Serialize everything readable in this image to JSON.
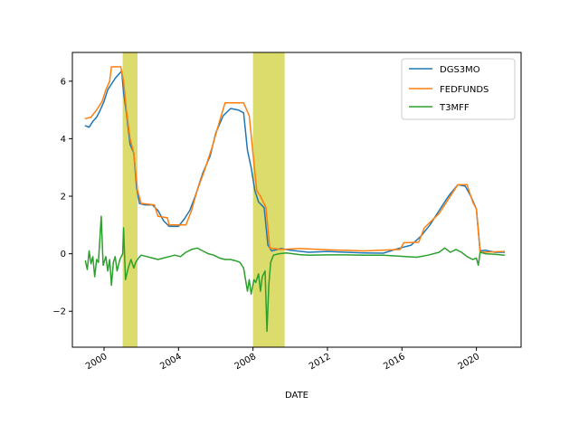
{
  "chart_data": {
    "type": "line",
    "title": "",
    "xlabel": "DATE",
    "ylabel": "",
    "xlim": [
      1998.3,
      2022.4
    ],
    "ylim": [
      -3.25,
      7.0
    ],
    "x_ticks": [
      {
        "value": 2000,
        "label": "2000"
      },
      {
        "value": 2004,
        "label": "2004"
      },
      {
        "value": 2008,
        "label": "2008"
      },
      {
        "value": 2012,
        "label": "2012"
      },
      {
        "value": 2016,
        "label": "2016"
      },
      {
        "value": 2020,
        "label": "2020"
      }
    ],
    "y_ticks": [
      {
        "value": -2,
        "label": "−2"
      },
      {
        "value": 0,
        "label": "0"
      },
      {
        "value": 2,
        "label": "2"
      },
      {
        "value": 4,
        "label": "4"
      },
      {
        "value": 6,
        "label": "6"
      }
    ],
    "grid": false,
    "legend_position": "top-right",
    "shaded_regions": [
      {
        "x0": 2001.0,
        "x1": 2001.8,
        "color": "#d6d654"
      },
      {
        "x0": 2008.0,
        "x1": 2009.7,
        "color": "#d6d654"
      }
    ],
    "series": [
      {
        "name": "DGS3MO",
        "color": "#1f77b4",
        "points": [
          [
            1999.0,
            4.45
          ],
          [
            1999.2,
            4.4
          ],
          [
            1999.4,
            4.6
          ],
          [
            1999.6,
            4.75
          ],
          [
            1999.8,
            5.0
          ],
          [
            2000.0,
            5.3
          ],
          [
            2000.2,
            5.7
          ],
          [
            2000.4,
            5.9
          ],
          [
            2000.6,
            6.1
          ],
          [
            2000.8,
            6.25
          ],
          [
            2000.95,
            6.35
          ],
          [
            2001.05,
            5.6
          ],
          [
            2001.2,
            4.9
          ],
          [
            2001.4,
            3.8
          ],
          [
            2001.6,
            3.5
          ],
          [
            2001.75,
            2.3
          ],
          [
            2001.9,
            1.75
          ],
          [
            2002.2,
            1.7
          ],
          [
            2002.6,
            1.7
          ],
          [
            2002.9,
            1.5
          ],
          [
            2003.2,
            1.15
          ],
          [
            2003.5,
            0.95
          ],
          [
            2004.0,
            0.95
          ],
          [
            2004.3,
            1.2
          ],
          [
            2004.6,
            1.5
          ],
          [
            2004.9,
            2.0
          ],
          [
            2005.3,
            2.8
          ],
          [
            2005.7,
            3.4
          ],
          [
            2006.0,
            4.2
          ],
          [
            2006.4,
            4.8
          ],
          [
            2006.8,
            5.05
          ],
          [
            2007.2,
            5.0
          ],
          [
            2007.5,
            4.9
          ],
          [
            2007.7,
            3.6
          ],
          [
            2007.9,
            3.0
          ],
          [
            2008.1,
            2.2
          ],
          [
            2008.3,
            1.8
          ],
          [
            2008.6,
            1.6
          ],
          [
            2008.8,
            0.3
          ],
          [
            2009.0,
            0.1
          ],
          [
            2009.5,
            0.18
          ],
          [
            2010.0,
            0.12
          ],
          [
            2011.0,
            0.05
          ],
          [
            2012.0,
            0.08
          ],
          [
            2013.0,
            0.05
          ],
          [
            2014.0,
            0.03
          ],
          [
            2015.0,
            0.02
          ],
          [
            2015.9,
            0.2
          ],
          [
            2016.5,
            0.3
          ],
          [
            2017.0,
            0.6
          ],
          [
            2017.5,
            1.0
          ],
          [
            2018.0,
            1.5
          ],
          [
            2018.5,
            2.0
          ],
          [
            2019.0,
            2.4
          ],
          [
            2019.4,
            2.35
          ],
          [
            2019.7,
            2.0
          ],
          [
            2020.0,
            1.55
          ],
          [
            2020.2,
            0.1
          ],
          [
            2020.5,
            0.12
          ],
          [
            2021.0,
            0.05
          ],
          [
            2021.5,
            0.05
          ]
        ]
      },
      {
        "name": "FEDFUNDS",
        "color": "#ff7f0e",
        "points": [
          [
            1999.0,
            4.7
          ],
          [
            1999.3,
            4.75
          ],
          [
            1999.6,
            5.0
          ],
          [
            1999.9,
            5.3
          ],
          [
            2000.1,
            5.7
          ],
          [
            2000.3,
            6.0
          ],
          [
            2000.4,
            6.5
          ],
          [
            2000.9,
            6.5
          ],
          [
            2001.05,
            6.0
          ],
          [
            2001.2,
            5.0
          ],
          [
            2001.4,
            4.0
          ],
          [
            2001.6,
            3.5
          ],
          [
            2001.8,
            2.2
          ],
          [
            2002.0,
            1.75
          ],
          [
            2002.7,
            1.7
          ],
          [
            2002.9,
            1.3
          ],
          [
            2003.4,
            1.25
          ],
          [
            2003.5,
            1.0
          ],
          [
            2004.4,
            1.0
          ],
          [
            2004.7,
            1.5
          ],
          [
            2005.0,
            2.2
          ],
          [
            2005.4,
            2.9
          ],
          [
            2005.8,
            3.7
          ],
          [
            2006.2,
            4.6
          ],
          [
            2006.5,
            5.25
          ],
          [
            2007.5,
            5.25
          ],
          [
            2007.8,
            4.8
          ],
          [
            2008.0,
            3.5
          ],
          [
            2008.2,
            2.2
          ],
          [
            2008.4,
            2.0
          ],
          [
            2008.7,
            1.6
          ],
          [
            2008.9,
            0.2
          ],
          [
            2009.5,
            0.15
          ],
          [
            2010.5,
            0.18
          ],
          [
            2012.0,
            0.14
          ],
          [
            2014.0,
            0.1
          ],
          [
            2015.9,
            0.15
          ],
          [
            2016.1,
            0.38
          ],
          [
            2016.9,
            0.4
          ],
          [
            2017.2,
            0.9
          ],
          [
            2017.6,
            1.15
          ],
          [
            2018.0,
            1.4
          ],
          [
            2018.5,
            1.9
          ],
          [
            2019.0,
            2.4
          ],
          [
            2019.5,
            2.4
          ],
          [
            2019.8,
            1.8
          ],
          [
            2020.0,
            1.55
          ],
          [
            2020.2,
            0.05
          ],
          [
            2021.5,
            0.08
          ]
        ]
      },
      {
        "name": "T3MFF",
        "color": "#2ca02c",
        "points": [
          [
            1999.0,
            -0.25
          ],
          [
            1999.1,
            -0.55
          ],
          [
            1999.2,
            0.1
          ],
          [
            1999.3,
            -0.35
          ],
          [
            1999.4,
            -0.1
          ],
          [
            1999.5,
            -0.8
          ],
          [
            1999.6,
            -0.2
          ],
          [
            1999.7,
            -0.3
          ],
          [
            1999.85,
            1.3
          ],
          [
            1999.95,
            -0.4
          ],
          [
            2000.1,
            -0.1
          ],
          [
            2000.2,
            -0.6
          ],
          [
            2000.3,
            -0.2
          ],
          [
            2000.4,
            -1.1
          ],
          [
            2000.5,
            -0.3
          ],
          [
            2000.6,
            -0.1
          ],
          [
            2000.7,
            -0.6
          ],
          [
            2000.85,
            -0.2
          ],
          [
            2001.0,
            0.0
          ],
          [
            2001.05,
            0.9
          ],
          [
            2001.15,
            -0.9
          ],
          [
            2001.3,
            -0.5
          ],
          [
            2001.45,
            -0.2
          ],
          [
            2001.6,
            -0.5
          ],
          [
            2001.7,
            -0.3
          ],
          [
            2001.85,
            -0.15
          ],
          [
            2002.0,
            -0.05
          ],
          [
            2002.3,
            -0.1
          ],
          [
            2002.6,
            -0.15
          ],
          [
            2002.9,
            -0.2
          ],
          [
            2003.2,
            -0.15
          ],
          [
            2003.5,
            -0.1
          ],
          [
            2003.8,
            -0.05
          ],
          [
            2004.1,
            -0.1
          ],
          [
            2004.4,
            0.05
          ],
          [
            2004.7,
            0.15
          ],
          [
            2005.0,
            0.2
          ],
          [
            2005.3,
            0.1
          ],
          [
            2005.6,
            0.0
          ],
          [
            2005.9,
            -0.05
          ],
          [
            2006.2,
            -0.15
          ],
          [
            2006.5,
            -0.2
          ],
          [
            2006.8,
            -0.2
          ],
          [
            2007.1,
            -0.25
          ],
          [
            2007.3,
            -0.3
          ],
          [
            2007.5,
            -0.5
          ],
          [
            2007.7,
            -1.3
          ],
          [
            2007.8,
            -0.9
          ],
          [
            2007.9,
            -1.4
          ],
          [
            2008.05,
            -0.9
          ],
          [
            2008.15,
            -1.0
          ],
          [
            2008.3,
            -0.7
          ],
          [
            2008.4,
            -1.3
          ],
          [
            2008.5,
            -0.8
          ],
          [
            2008.65,
            -0.6
          ],
          [
            2008.75,
            -2.7
          ],
          [
            2008.85,
            -1.1
          ],
          [
            2008.95,
            -0.3
          ],
          [
            2009.1,
            -0.05
          ],
          [
            2009.4,
            0.0
          ],
          [
            2009.8,
            0.03
          ],
          [
            2010.5,
            -0.03
          ],
          [
            2011.0,
            -0.05
          ],
          [
            2012.0,
            -0.04
          ],
          [
            2013.0,
            -0.04
          ],
          [
            2014.0,
            -0.05
          ],
          [
            2015.0,
            -0.05
          ],
          [
            2015.8,
            -0.08
          ],
          [
            2016.2,
            -0.1
          ],
          [
            2016.8,
            -0.12
          ],
          [
            2017.4,
            -0.05
          ],
          [
            2018.0,
            0.05
          ],
          [
            2018.3,
            0.2
          ],
          [
            2018.6,
            0.05
          ],
          [
            2018.9,
            0.15
          ],
          [
            2019.2,
            0.05
          ],
          [
            2019.5,
            -0.1
          ],
          [
            2019.8,
            -0.2
          ],
          [
            2020.0,
            -0.15
          ],
          [
            2020.1,
            -0.4
          ],
          [
            2020.2,
            0.05
          ],
          [
            2020.5,
            0.0
          ],
          [
            2021.0,
            -0.02
          ],
          [
            2021.5,
            -0.05
          ]
        ]
      }
    ]
  }
}
